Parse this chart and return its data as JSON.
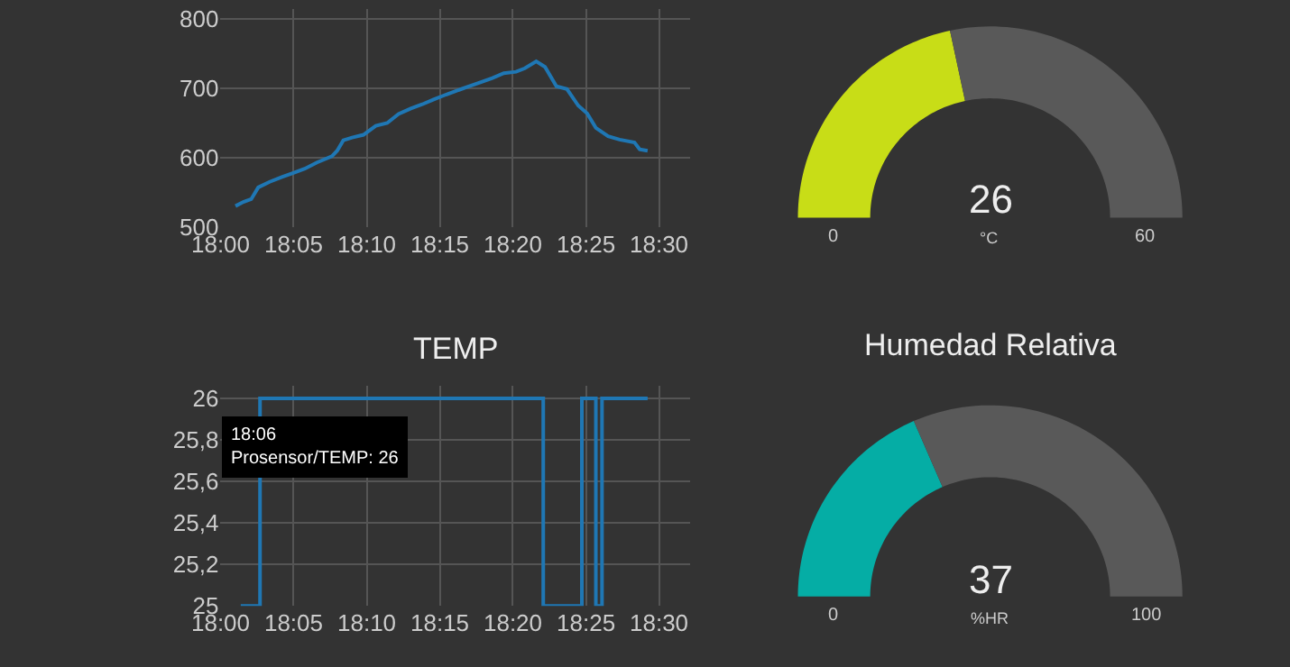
{
  "chart_data": [
    {
      "type": "line",
      "color": "#1f77b4",
      "grid": true,
      "x": [
        18.017,
        18.026,
        18.035,
        18.043,
        18.056,
        18.07,
        18.083,
        18.096,
        18.11,
        18.127,
        18.133,
        18.14,
        18.15,
        18.163,
        18.177,
        18.19,
        18.203,
        18.217,
        18.23,
        18.243,
        18.257,
        18.27,
        18.283,
        18.297,
        18.31,
        18.323,
        18.337,
        18.347,
        18.36,
        18.37,
        18.383,
        18.395,
        18.408,
        18.418,
        18.428,
        18.442,
        18.455,
        18.472,
        18.478,
        18.487
      ],
      "values": [
        530,
        536,
        540,
        557,
        565,
        572,
        578,
        584,
        593,
        602,
        610,
        625,
        629,
        633,
        646,
        650,
        663,
        671,
        677,
        684,
        691,
        697,
        703,
        709,
        715,
        722,
        724,
        729,
        739,
        731,
        703,
        699,
        675,
        664,
        643,
        631,
        626,
        622,
        612,
        610
      ],
      "xlim": [
        18,
        18.535
      ],
      "xticks": [
        {
          "value": 18,
          "label": "18:00"
        },
        {
          "value": 18.0833,
          "label": "18:05"
        },
        {
          "value": 18.1667,
          "label": "18:10"
        },
        {
          "value": 18.25,
          "label": "18:15"
        },
        {
          "value": 18.3333,
          "label": "18:20"
        },
        {
          "value": 18.4167,
          "label": "18:25"
        },
        {
          "value": 18.5,
          "label": "18:30"
        }
      ],
      "ylim": [
        500,
        815
      ],
      "yticks": [
        500,
        600,
        700,
        800
      ]
    },
    {
      "type": "step",
      "title": "TEMP",
      "color": "#1f77b4",
      "grid": true,
      "x": [
        18.023,
        18.045,
        18.368,
        18.412,
        18.428,
        18.435,
        18.487
      ],
      "values": [
        25,
        26,
        25,
        26,
        25,
        26,
        26
      ],
      "xlim": [
        18,
        18.535
      ],
      "xticks": [
        {
          "value": 18,
          "label": "18:00"
        },
        {
          "value": 18.0833,
          "label": "18:05"
        },
        {
          "value": 18.1667,
          "label": "18:10"
        },
        {
          "value": 18.25,
          "label": "18:15"
        },
        {
          "value": 18.3333,
          "label": "18:20"
        },
        {
          "value": 18.4167,
          "label": "18:25"
        },
        {
          "value": 18.5,
          "label": "18:30"
        }
      ],
      "ylim": [
        25,
        26.06
      ],
      "yticks": [
        25,
        {
          "value": 25.2,
          "label": "25,2"
        },
        {
          "value": 25.4,
          "label": "25,4"
        },
        {
          "value": 25.6,
          "label": "25,6"
        },
        {
          "value": 25.8,
          "label": "25,8"
        },
        26
      ],
      "annotations": [
        {
          "text": "18:06\nProsensor/TEMP: 26",
          "x": 18.108,
          "y": 26
        }
      ]
    },
    {
      "type": "donut",
      "categories": [
        null,
        null
      ],
      "values": [
        43.3,
        56.7
      ],
      "colors": [
        "#c8dd17",
        "#595959"
      ],
      "annotations": [
        "0",
        "26",
        "60"
      ],
      "ylabel": "°C"
    },
    {
      "type": "donut",
      "title": "Humedad Relativa",
      "categories": [
        null,
        null
      ],
      "values": [
        37,
        63
      ],
      "colors": [
        "#05ada5",
        "#595959"
      ],
      "annotations": [
        "0",
        "37",
        "100"
      ],
      "ylabel": "%HR"
    }
  ]
}
